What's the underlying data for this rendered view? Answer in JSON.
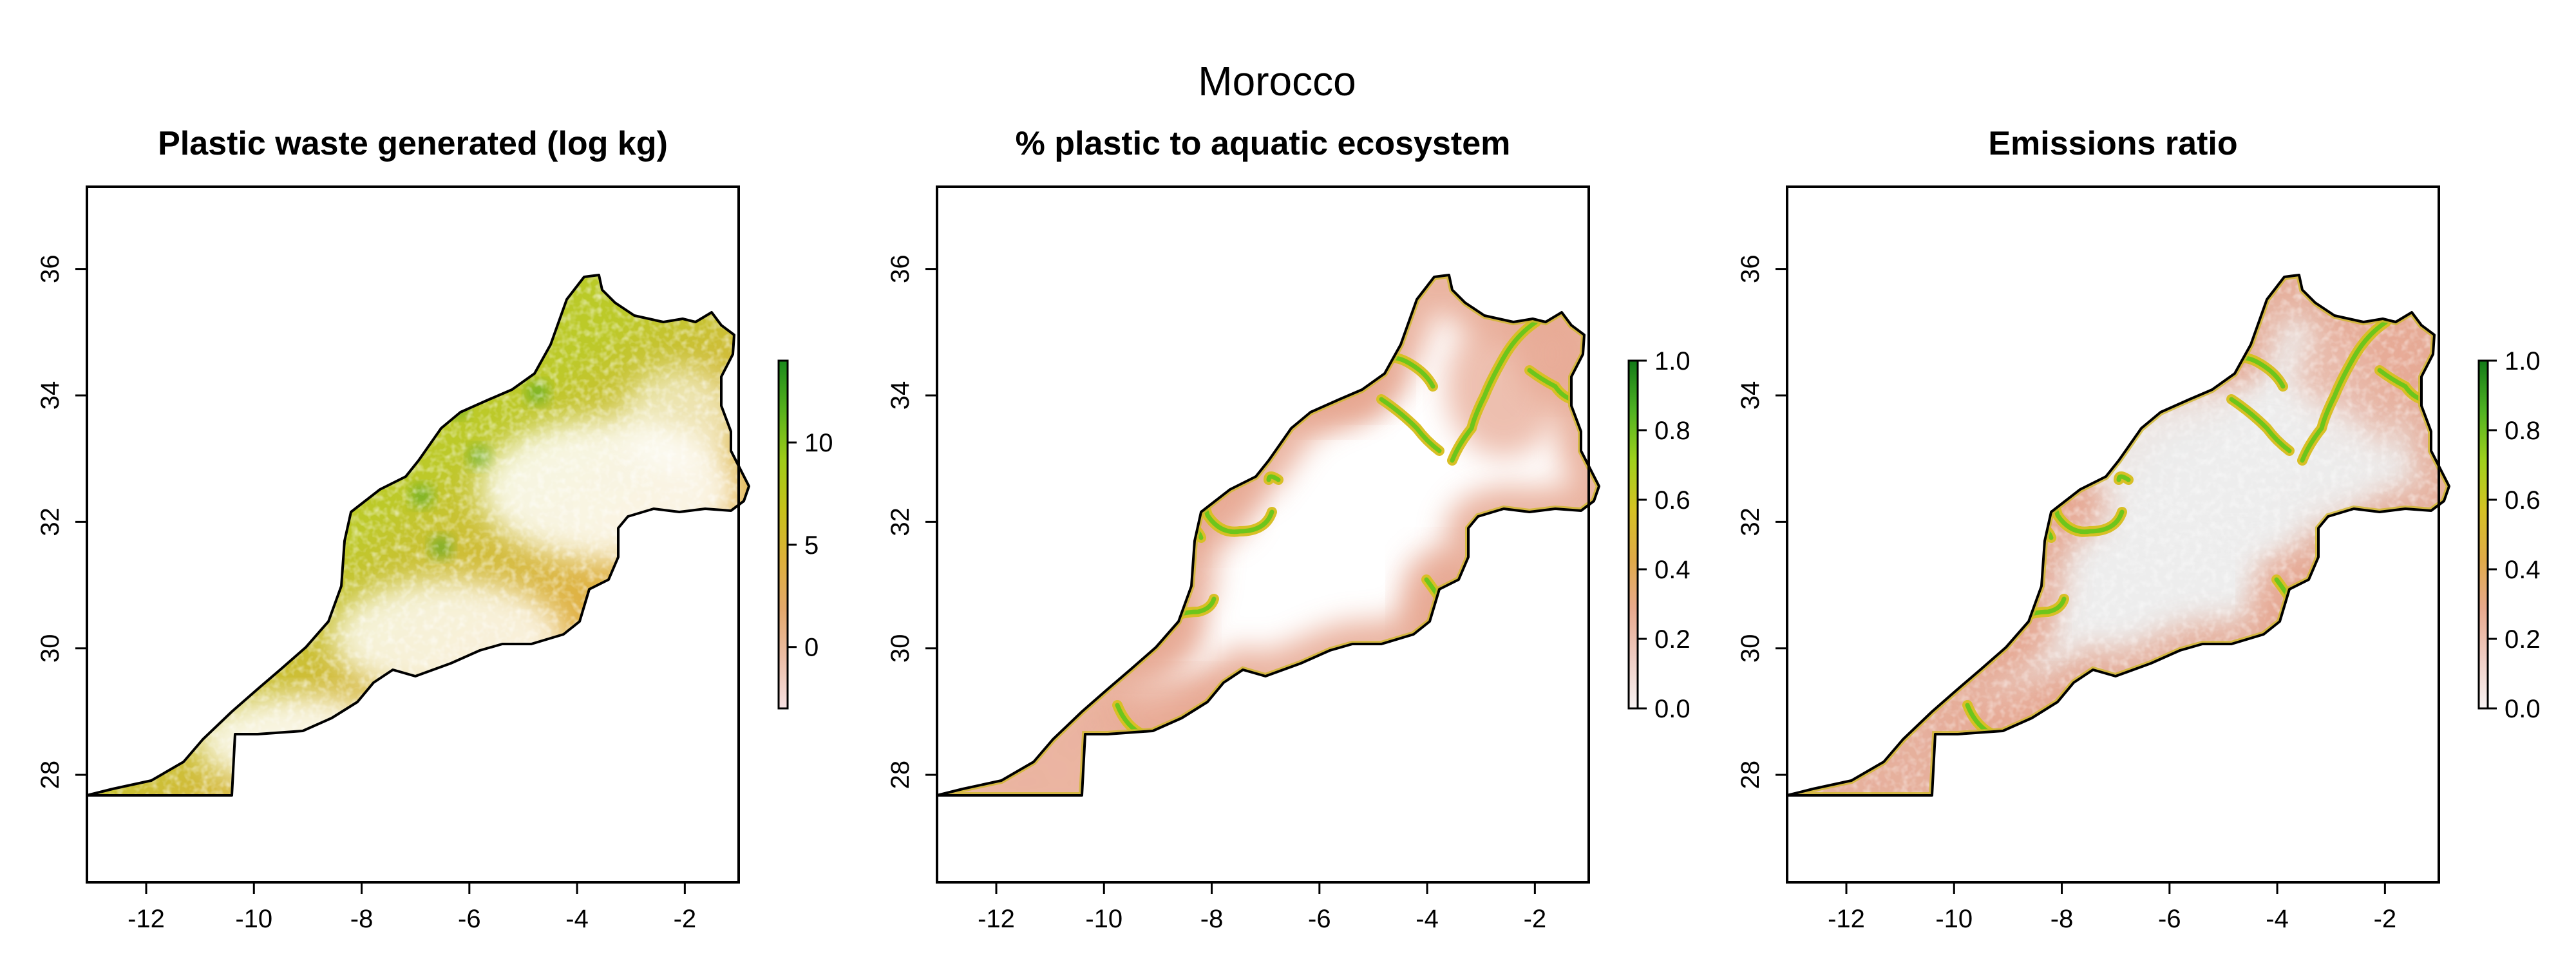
{
  "figure": {
    "title": "Morocco"
  },
  "panels": [
    {
      "title": "Plastic waste generated (log kg)",
      "x_ticks": [
        "-12",
        "-10",
        "-8",
        "-6",
        "-4",
        "-2"
      ],
      "y_ticks": [
        "28",
        "30",
        "32",
        "34",
        "36"
      ],
      "colorbar": {
        "ticks": [
          "0",
          "5",
          "10"
        ],
        "tick_values": [
          0,
          5,
          10
        ],
        "range": [
          -3,
          14
        ],
        "colors": [
          "#f7e1e3",
          "#ecbea7",
          "#e3a86b",
          "#ddb13a",
          "#c7c21a",
          "#9fcc18",
          "#57b21c",
          "#1a8a1c"
        ]
      },
      "map_style": "waste"
    },
    {
      "title": "% plastic to aquatic ecosystem",
      "x_ticks": [
        "-12",
        "-10",
        "-8",
        "-6",
        "-4",
        "-2"
      ],
      "y_ticks": [
        "28",
        "30",
        "32",
        "34",
        "36"
      ],
      "colorbar": {
        "ticks": [
          "0.0",
          "0.2",
          "0.4",
          "0.6",
          "0.8",
          "1.0"
        ],
        "tick_values": [
          0,
          0.2,
          0.4,
          0.6,
          0.8,
          1.0
        ],
        "range": [
          0,
          1
        ],
        "colors": [
          "#f8f3f3",
          "#efcdc4",
          "#e8a98d",
          "#e0aa48",
          "#d5c224",
          "#9fd11c",
          "#4fb222",
          "#127a18"
        ]
      },
      "map_style": "rivers"
    },
    {
      "title": "Emissions ratio",
      "x_ticks": [
        "-12",
        "-10",
        "-8",
        "-6",
        "-4",
        "-2"
      ],
      "y_ticks": [
        "28",
        "30",
        "32",
        "34",
        "36"
      ],
      "colorbar": {
        "ticks": [
          "0.0",
          "0.2",
          "0.4",
          "0.6",
          "0.8",
          "1.0"
        ],
        "tick_values": [
          0,
          0.2,
          0.4,
          0.6,
          0.8,
          1.0
        ],
        "range": [
          0,
          1
        ],
        "colors": [
          "#f8f3f3",
          "#efcdc4",
          "#e8a98d",
          "#e0aa48",
          "#d5c224",
          "#9fd11c",
          "#4fb222",
          "#127a18"
        ]
      },
      "map_style": "ratio"
    }
  ]
}
